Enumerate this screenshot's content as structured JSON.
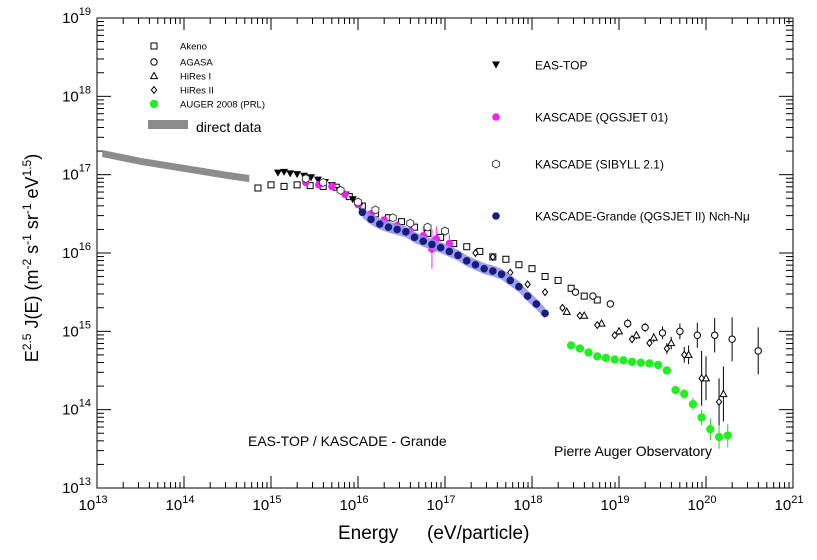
{
  "chart_data": {
    "type": "scatter",
    "title": "",
    "xlabel": "Energy",
    "xlabel_units": "(eV/particle)",
    "ylabel": "E^{2.5} J(E) (m^{-2} s^{-1} sr^{-1} eV^{1.5})",
    "ylabel_parts": {
      "e": "E",
      "e_exp": "2.5",
      "main": " J(E) (m",
      "m_exp": "-2",
      "s": " s",
      "s_exp": "-1",
      "sr": " sr",
      "sr_exp": "-1",
      "ev": " eV",
      "ev_exp": "1.5",
      "close": ")"
    },
    "x_scale": "log",
    "y_scale": "log",
    "xlim": [
      10000000000000.0,
      1e+21
    ],
    "ylim": [
      10000000000000.0,
      1e+19
    ],
    "x_ticks": [
      {
        "base": "10",
        "exp": "13",
        "value": 13
      },
      {
        "base": "10",
        "exp": "14",
        "value": 14
      },
      {
        "base": "10",
        "exp": "15",
        "value": 15
      },
      {
        "base": "10",
        "exp": "16",
        "value": 16
      },
      {
        "base": "10",
        "exp": "17",
        "value": 17
      },
      {
        "base": "10",
        "exp": "18",
        "value": 18
      },
      {
        "base": "10",
        "exp": "19",
        "value": 19
      },
      {
        "base": "10",
        "exp": "20",
        "value": 20
      },
      {
        "base": "10",
        "exp": "21",
        "value": 21
      }
    ],
    "y_ticks": [
      {
        "base": "10",
        "exp": "13",
        "value": 13
      },
      {
        "base": "10",
        "exp": "14",
        "value": 14
      },
      {
        "base": "10",
        "exp": "15",
        "value": 15
      },
      {
        "base": "10",
        "exp": "16",
        "value": 16
      },
      {
        "base": "10",
        "exp": "17",
        "value": 17
      },
      {
        "base": "10",
        "exp": "18",
        "value": 18
      },
      {
        "base": "10",
        "exp": "19",
        "value": 19
      }
    ],
    "legend_left": [
      {
        "name": "Akeno",
        "marker": "open-square"
      },
      {
        "name": "AGASA",
        "marker": "open-circle"
      },
      {
        "name": "HiRes I",
        "marker": "open-triangle"
      },
      {
        "name": "HiRes II",
        "marker": "open-diamond"
      },
      {
        "name": "AUGER 2008 (PRL)",
        "marker": "green-dot"
      },
      {
        "name": "direct data",
        "marker": "gray-band"
      }
    ],
    "legend_right": [
      {
        "name": "EAS-TOP",
        "marker": "down-triangle"
      },
      {
        "name": "KASCADE (QGSJET 01)",
        "marker": "magenta-dot"
      },
      {
        "name": "KASCADE (SIBYLL 2.1)",
        "marker": "open-hexagon"
      },
      {
        "name": "KASCADE-Grande (QGSJET II) Nch-Nμ",
        "marker": "navy-dot"
      }
    ],
    "annotations": [
      "EAS-TOP / KASCADE  - Grande",
      "Pierre Auger Observatory"
    ],
    "series": [
      {
        "name": "direct data",
        "style": "band",
        "color": "#8c8c8c",
        "points": [
          [
            13.06,
            17.27
          ],
          [
            13.5,
            17.17
          ],
          [
            14.0,
            17.08
          ],
          [
            14.5,
            16.99
          ],
          [
            14.75,
            16.95
          ]
        ]
      },
      {
        "name": "Akeno",
        "marker": "open-square",
        "points": [
          [
            14.85,
            16.83
          ],
          [
            15.0,
            16.87
          ],
          [
            15.15,
            16.85
          ],
          [
            15.3,
            16.87
          ],
          [
            15.45,
            16.86
          ],
          [
            15.6,
            16.85
          ],
          [
            15.75,
            16.84
          ],
          [
            15.9,
            16.72
          ],
          [
            16.05,
            16.6
          ],
          [
            16.2,
            16.5
          ],
          [
            16.35,
            16.45
          ],
          [
            16.5,
            16.4
          ],
          [
            16.65,
            16.33
          ],
          [
            16.8,
            16.25
          ],
          [
            16.95,
            16.2
          ],
          [
            17.1,
            16.12
          ],
          [
            17.25,
            16.08
          ],
          [
            17.4,
            16.02
          ],
          [
            17.55,
            15.95
          ],
          [
            17.7,
            15.92
          ],
          [
            17.85,
            15.85
          ],
          [
            18.0,
            15.8
          ],
          [
            18.15,
            15.7
          ],
          [
            18.3,
            15.65
          ],
          [
            18.45,
            15.55
          ],
          [
            18.6,
            15.45
          ],
          [
            18.75,
            15.4
          ]
        ]
      },
      {
        "name": "AGASA",
        "marker": "open-circle",
        "points": [
          [
            18.5,
            15.5
          ],
          [
            18.7,
            15.45
          ],
          [
            18.9,
            15.35
          ],
          [
            19.1,
            15.1
          ],
          [
            19.3,
            15.05
          ],
          [
            19.5,
            14.98
          ],
          [
            19.7,
            15.0
          ],
          [
            19.9,
            14.95
          ],
          [
            20.1,
            14.95
          ],
          [
            20.3,
            14.9
          ],
          [
            20.6,
            14.75
          ]
        ],
        "err": [
          0.0,
          0.0,
          0.0,
          0.06,
          0.06,
          0.08,
          0.1,
          0.16,
          0.22,
          0.28,
          0.3
        ]
      },
      {
        "name": "HiRes I",
        "marker": "open-triangle",
        "points": [
          [
            18.4,
            15.25
          ],
          [
            18.6,
            15.2
          ],
          [
            18.8,
            15.1
          ],
          [
            19.0,
            15.0
          ],
          [
            19.2,
            14.95
          ],
          [
            19.4,
            14.92
          ],
          [
            19.6,
            14.85
          ],
          [
            19.8,
            14.7
          ],
          [
            20.0,
            14.4
          ],
          [
            20.2,
            14.2
          ]
        ],
        "err": [
          0,
          0,
          0,
          0.05,
          0.05,
          0.06,
          0.08,
          0.12,
          0.28,
          0.35
        ]
      },
      {
        "name": "HiRes II",
        "marker": "open-diamond",
        "points": [
          [
            17.35,
            16.0
          ],
          [
            17.55,
            15.95
          ],
          [
            17.75,
            15.75
          ],
          [
            17.95,
            15.6
          ],
          [
            18.15,
            15.5
          ],
          [
            18.35,
            15.3
          ],
          [
            18.55,
            15.2
          ],
          [
            18.75,
            15.08
          ],
          [
            18.95,
            14.95
          ],
          [
            19.15,
            14.9
          ],
          [
            19.35,
            14.85
          ],
          [
            19.55,
            14.78
          ],
          [
            19.75,
            14.7
          ],
          [
            19.95,
            14.4
          ],
          [
            20.15,
            14.1
          ]
        ],
        "err": [
          0,
          0,
          0,
          0,
          0,
          0,
          0,
          0,
          0,
          0.05,
          0.05,
          0.07,
          0.1,
          0.35,
          0.3
        ]
      },
      {
        "name": "AUGER 2008 (PRL)",
        "marker": "green-dot",
        "points": [
          [
            18.45,
            14.82
          ],
          [
            18.55,
            14.78
          ],
          [
            18.65,
            14.73
          ],
          [
            18.75,
            14.68
          ],
          [
            18.85,
            14.66
          ],
          [
            18.95,
            14.64
          ],
          [
            19.05,
            14.63
          ],
          [
            19.15,
            14.61
          ],
          [
            19.25,
            14.6
          ],
          [
            19.35,
            14.59
          ],
          [
            19.45,
            14.57
          ],
          [
            19.55,
            14.5
          ],
          [
            19.65,
            14.25
          ],
          [
            19.75,
            14.2
          ],
          [
            19.85,
            14.07
          ],
          [
            19.95,
            13.9
          ],
          [
            20.05,
            13.75
          ],
          [
            20.15,
            13.65
          ],
          [
            20.25,
            13.67
          ]
        ],
        "err": [
          0,
          0,
          0,
          0,
          0,
          0,
          0,
          0,
          0,
          0,
          0,
          0.03,
          0.05,
          0.06,
          0.08,
          0.1,
          0.14,
          0.15,
          0.15
        ]
      },
      {
        "name": "EAS-TOP",
        "marker": "down-triangle",
        "points": [
          [
            15.08,
            17.02
          ],
          [
            15.15,
            17.03
          ],
          [
            15.22,
            17.01
          ],
          [
            15.3,
            17.0
          ],
          [
            15.38,
            16.98
          ],
          [
            15.46,
            16.96
          ],
          [
            15.54,
            16.93
          ],
          [
            15.62,
            16.9
          ],
          [
            15.7,
            16.86
          ],
          [
            15.78,
            16.8
          ],
          [
            15.86,
            16.74
          ],
          [
            15.94,
            16.68
          ],
          [
            16.02,
            16.6
          ]
        ]
      },
      {
        "name": "KASCADE (QGSJET 01)",
        "marker": "magenta-dot",
        "points": [
          [
            15.4,
            16.9
          ],
          [
            15.55,
            16.87
          ],
          [
            15.7,
            16.85
          ],
          [
            15.85,
            16.75
          ],
          [
            16.0,
            16.62
          ],
          [
            16.15,
            16.5
          ],
          [
            16.3,
            16.42
          ],
          [
            16.45,
            16.35
          ],
          [
            16.6,
            16.28
          ],
          [
            16.75,
            16.22
          ],
          [
            16.9,
            16.18
          ],
          [
            17.05,
            16.12
          ],
          [
            16.85,
            16.05
          ]
        ],
        "err": [
          0,
          0,
          0,
          0,
          0,
          0,
          0.05,
          0.06,
          0.1,
          0.12,
          0.16,
          0.12,
          0.25
        ]
      },
      {
        "name": "KASCADE (SIBYLL 2.1)",
        "marker": "open-hexagon",
        "points": [
          [
            15.4,
            16.95
          ],
          [
            15.6,
            16.9
          ],
          [
            15.8,
            16.8
          ],
          [
            16.0,
            16.65
          ],
          [
            16.2,
            16.55
          ],
          [
            16.4,
            16.45
          ],
          [
            16.6,
            16.38
          ],
          [
            16.8,
            16.33
          ],
          [
            17.0,
            16.28
          ]
        ]
      },
      {
        "name": "KASCADE-Grande (QGSJET II) Nch-Nμ",
        "marker": "navy-dot",
        "points": [
          [
            16.05,
            16.52
          ],
          [
            16.15,
            16.43
          ],
          [
            16.25,
            16.37
          ],
          [
            16.35,
            16.33
          ],
          [
            16.45,
            16.3
          ],
          [
            16.55,
            16.27
          ],
          [
            16.65,
            16.2
          ],
          [
            16.75,
            16.15
          ],
          [
            16.85,
            16.11
          ],
          [
            16.95,
            16.07
          ],
          [
            17.05,
            16.02
          ],
          [
            17.15,
            15.97
          ],
          [
            17.25,
            15.9
          ],
          [
            17.35,
            15.85
          ],
          [
            17.45,
            15.8
          ],
          [
            17.55,
            15.77
          ],
          [
            17.65,
            15.73
          ],
          [
            17.75,
            15.65
          ],
          [
            17.85,
            15.57
          ],
          [
            17.95,
            15.45
          ],
          [
            18.05,
            15.35
          ],
          [
            18.15,
            15.23
          ]
        ],
        "band": 0.07
      }
    ]
  }
}
